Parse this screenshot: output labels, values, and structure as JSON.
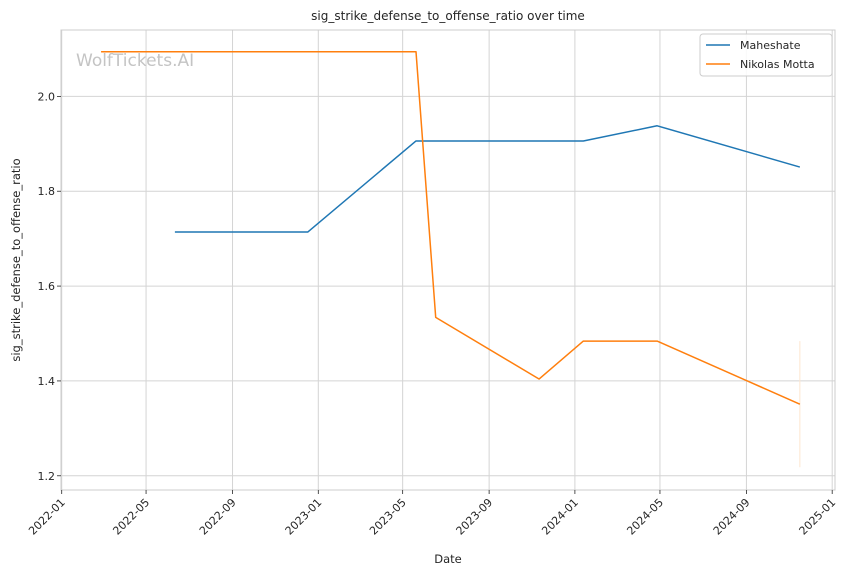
{
  "chart_data": {
    "type": "line",
    "title": "sig_strike_defense_to_offense_ratio over time",
    "xlabel": "Date",
    "ylabel": "sig_strike_defense_to_offense_ratio",
    "watermark": "WolfTickets.AI",
    "x_ticks": [
      "2022-01",
      "2022-05",
      "2022-09",
      "2023-01",
      "2023-05",
      "2023-09",
      "2024-01",
      "2024-05",
      "2024-09",
      "2025-01"
    ],
    "y_ticks": [
      "1.2",
      "1.4",
      "1.6",
      "1.8",
      "2.0"
    ],
    "xlim": [
      "2021-12-31",
      "2025-01-05"
    ],
    "ylim": [
      1.17,
      2.14
    ],
    "grid": true,
    "legend_position": "top-right",
    "series": [
      {
        "name": "Maheshate",
        "color": "#1f77b4",
        "x": [
          "2022-06-11",
          "2022-12-17",
          "2023-05-20",
          "2024-01-13",
          "2024-04-27",
          "2024-11-16"
        ],
        "y": [
          1.714,
          1.714,
          1.906,
          1.906,
          1.938,
          1.851
        ]
      },
      {
        "name": "Nikolas Motta",
        "color": "#ff7f0e",
        "x": [
          "2022-02-26",
          "2023-05-20",
          "2023-06-17",
          "2023-11-11",
          "2024-01-13",
          "2024-04-27",
          "2024-11-16"
        ],
        "y": [
          2.094,
          2.094,
          1.534,
          1.404,
          1.484,
          1.484,
          1.351
        ]
      }
    ],
    "error_bar": {
      "x": "2024-11-16",
      "y_low": 1.218,
      "y_high": 1.484,
      "color": "#fde6d0"
    }
  }
}
